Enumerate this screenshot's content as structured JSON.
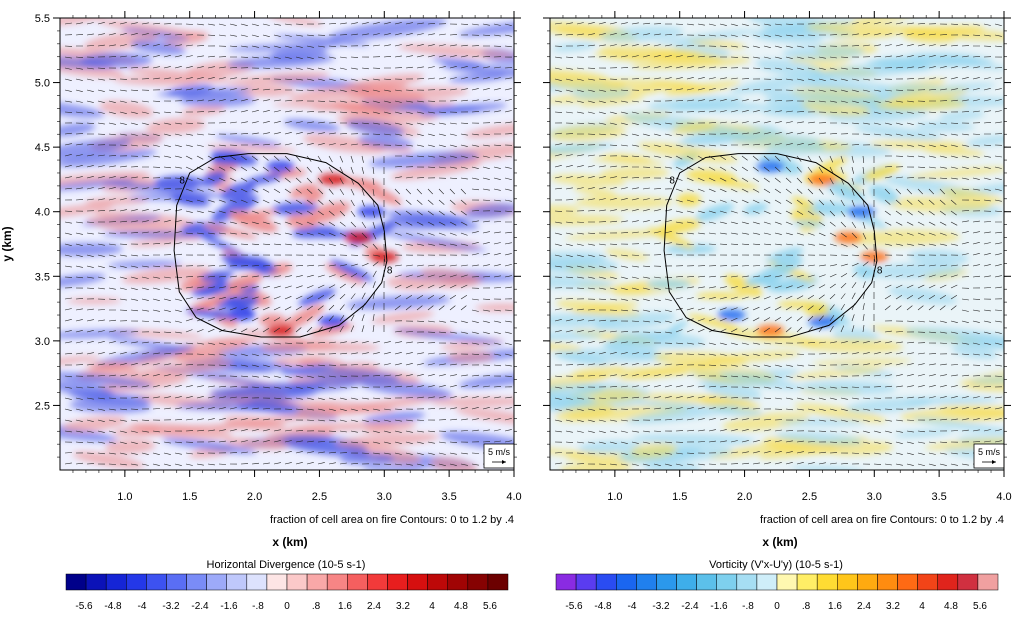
{
  "chart_data": [
    {
      "type": "heatmap",
      "ylabel": "y (km)",
      "xlabel": "x (km)",
      "subtitle": "fraction of cell area on fire Contours: 0 to 1.2 by .4",
      "xlim": [
        0.5,
        4.0
      ],
      "ylim": [
        2.0,
        5.5
      ],
      "x_ticks": [
        "1.0",
        "1.5",
        "2.0",
        "2.5",
        "3.0",
        "3.5",
        "4.0"
      ],
      "y_ticks": [
        "2.5",
        "3.0",
        "3.5",
        "4.0",
        "4.5",
        "5.0",
        "5.5"
      ],
      "contour_labels": [
        "8",
        "8"
      ],
      "reference_vector": "5 m/s",
      "colorbar": {
        "title": "Horizontal Divergence  (10-5 s-1)",
        "labels": [
          "-5.6",
          "-4.8",
          "-4",
          "-3.2",
          "-2.4",
          "-1.6",
          "-.8",
          "0",
          ".8",
          "1.6",
          "2.4",
          "3.2",
          "4",
          "4.8",
          "5.6"
        ],
        "colors": [
          "#00008a",
          "#0b12b8",
          "#1525d6",
          "#2438e8",
          "#3d52f0",
          "#5a6ef4",
          "#7a8cf7",
          "#9daaf9",
          "#bfc8fb",
          "#dde2fd",
          "#fde5e5",
          "#fbc9c9",
          "#f9a8a8",
          "#f78585",
          "#f55f5f",
          "#f23a3a",
          "#e81e1e",
          "#d60f0f",
          "#bd0808",
          "#a00404",
          "#860202",
          "#6c0000"
        ]
      },
      "field_colors": {
        "negative": "#4453e6",
        "positive": "#ef8a8a",
        "neutral": "#eef0ff"
      }
    },
    {
      "type": "heatmap",
      "ylabel": "",
      "xlabel": "x (km)",
      "subtitle": "fraction of cell area on fire Contours: 0 to 1.2 by .4",
      "xlim": [
        0.5,
        4.0
      ],
      "ylim": [
        2.0,
        5.5
      ],
      "x_ticks": [
        "1.0",
        "1.5",
        "2.0",
        "2.5",
        "3.0",
        "3.5",
        "4.0"
      ],
      "y_ticks": [],
      "contour_labels": [
        "8",
        "8"
      ],
      "reference_vector": "5 m/s",
      "colorbar": {
        "title": "Vorticity (V'x-U'y)  (10-5 s-1)",
        "labels": [
          "-5.6",
          "-4.8",
          "-4",
          "-3.2",
          "-2.4",
          "-1.6",
          "-.8",
          "0",
          ".8",
          "1.6",
          "2.4",
          "3.2",
          "4",
          "4.8",
          "5.6"
        ],
        "colors": [
          "#8a2be2",
          "#5a3cf0",
          "#2a4cf2",
          "#1a66f0",
          "#2080ee",
          "#2b98ec",
          "#3eaeea",
          "#5cc0ea",
          "#7ed0ee",
          "#a6def3",
          "#cfeef9",
          "#fff8b0",
          "#ffee66",
          "#ffdc33",
          "#ffc61a",
          "#ffaa10",
          "#ff8c10",
          "#ff6a14",
          "#f24418",
          "#e0241c",
          "#d03040",
          "#f0a0a0"
        ]
      },
      "field_colors": {
        "negative": "#8fd3ee",
        "positive": "#f7dd4c",
        "neutral": "#eaf4f8"
      }
    }
  ]
}
